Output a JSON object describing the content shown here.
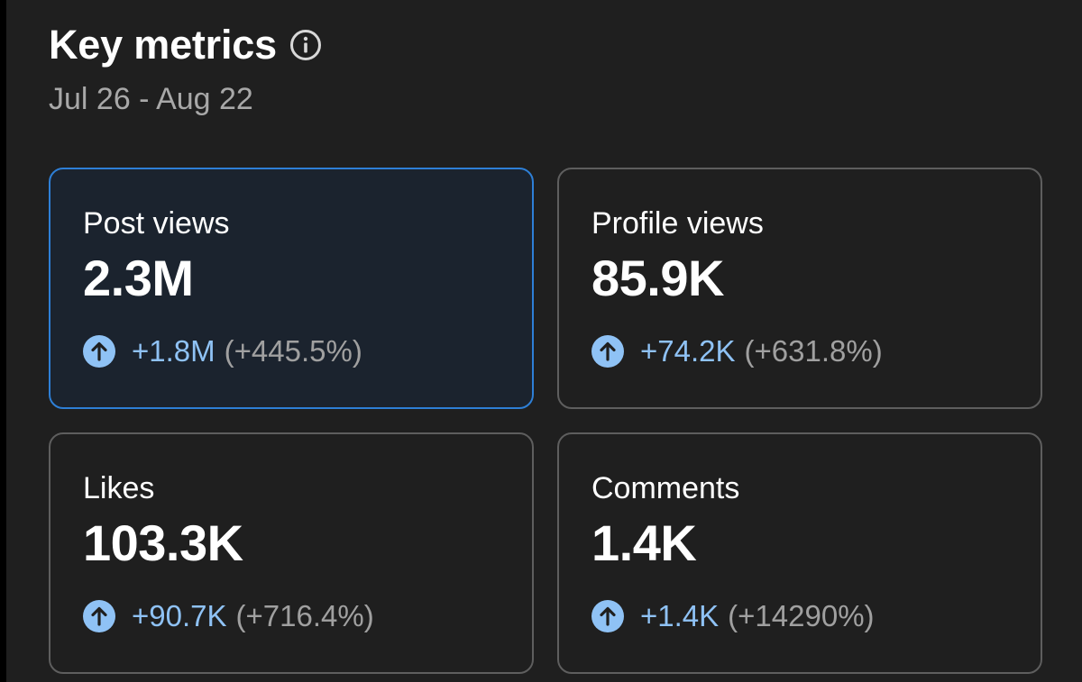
{
  "header": {
    "title": "Key metrics",
    "date_range": "Jul 26 - Aug 22"
  },
  "metrics": [
    {
      "label": "Post views",
      "value": "2.3M",
      "change": "+1.8M",
      "percent": "(+445.5%)",
      "selected": true
    },
    {
      "label": "Profile views",
      "value": "85.9K",
      "change": "+74.2K",
      "percent": "(+631.8%)",
      "selected": false
    },
    {
      "label": "Likes",
      "value": "103.3K",
      "change": "+90.7K",
      "percent": "(+716.4%)",
      "selected": false
    },
    {
      "label": "Comments",
      "value": "1.4K",
      "change": "+1.4K",
      "percent": "(+14290%)",
      "selected": false
    }
  ],
  "colors": {
    "background": "#1f1f1f",
    "accent_border": "#2e7fd6",
    "change_blue": "#8fc2f5",
    "muted_text": "#a0a0a0",
    "card_border": "#5e5e5e"
  },
  "icons": {
    "info": "info-circle-icon",
    "trend_up": "arrow-up-circle-icon"
  }
}
